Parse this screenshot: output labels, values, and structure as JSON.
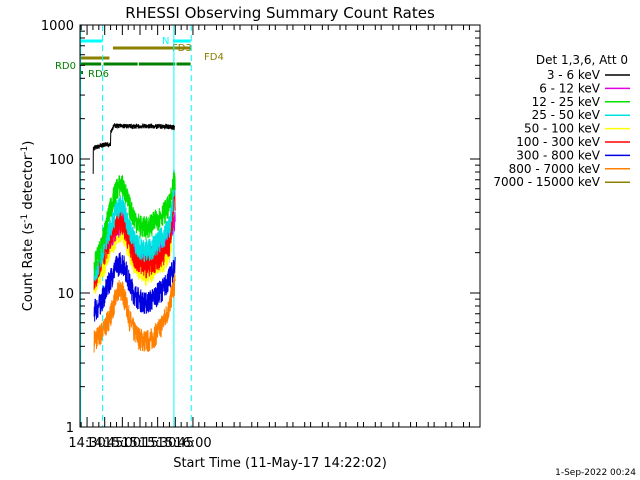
{
  "chart_data": {
    "type": "line",
    "title": "RHESSI Observing Summary Count Rates",
    "xlabel": "Start Time (11-May-17 14:22:02)",
    "ylabel_main": "Count Rate (s",
    "ylabel_sup1": "-1",
    "ylabel_mid": " detector",
    "ylabel_sup2": "-1",
    "ylabel_end": ")",
    "x_range_minutes": [
      864.0,
      1204.0
    ],
    "y_range": [
      1,
      1000
    ],
    "y_scale": "log",
    "x_ticks": [
      {
        "label": "14:30",
        "t": 870
      },
      {
        "label": "14:45",
        "t": 885
      },
      {
        "label": "15:00",
        "t": 900
      },
      {
        "label": "15:15",
        "t": 915
      },
      {
        "label": "15:30",
        "t": 930
      },
      {
        "label": "15:45",
        "t": 945
      },
      {
        "label": "16:00",
        "t": 960
      }
    ],
    "y_ticks": [
      {
        "label": "1",
        "v": 1
      },
      {
        "label": "10",
        "v": 10
      },
      {
        "label": "100",
        "v": 100
      },
      {
        "label": "1000",
        "v": 1000
      }
    ],
    "legend_header": "Det 1,3,6, Att 0",
    "series": [
      {
        "name": "3 - 6 keV",
        "color": "#000000",
        "points": [
          [
            875.2,
            75
          ],
          [
            875.3,
            120
          ],
          [
            880,
            125
          ],
          [
            885,
            128
          ],
          [
            890,
            130
          ],
          [
            890.1,
            160
          ],
          [
            893,
            178
          ],
          [
            900,
            176
          ],
          [
            910,
            175
          ],
          [
            920,
            176
          ],
          [
            930,
            175
          ],
          [
            940,
            175
          ],
          [
            944.5,
            170
          ]
        ]
      },
      {
        "name": "6 - 12 keV",
        "color": "#e000e0",
        "points": [
          [
            882,
            22
          ],
          [
            887,
            25
          ],
          [
            893,
            29
          ],
          [
            898,
            33
          ],
          [
            900,
            35
          ],
          [
            902,
            33
          ],
          [
            906,
            27
          ],
          [
            910,
            22
          ],
          [
            915,
            19
          ],
          [
            920,
            18
          ],
          [
            925,
            19
          ],
          [
            930,
            20
          ],
          [
            935,
            22
          ],
          [
            940,
            26
          ],
          [
            943,
            34
          ],
          [
            945,
            36
          ]
        ]
      },
      {
        "name": "12 - 25 keV",
        "color": "#00e000",
        "points": [
          [
            876,
            16
          ],
          [
            880,
            20
          ],
          [
            885,
            28
          ],
          [
            888,
            38
          ],
          [
            892,
            50
          ],
          [
            895,
            60
          ],
          [
            898,
            65
          ],
          [
            900,
            64
          ],
          [
            903,
            55
          ],
          [
            906,
            45
          ],
          [
            910,
            37
          ],
          [
            915,
            32
          ],
          [
            920,
            31
          ],
          [
            925,
            33
          ],
          [
            930,
            36
          ],
          [
            935,
            40
          ],
          [
            940,
            46
          ],
          [
            942,
            55
          ],
          [
            944,
            70
          ],
          [
            945,
            62
          ]
        ]
      },
      {
        "name": "25 - 50 keV",
        "color": "#00e0e0",
        "points": [
          [
            876,
            14
          ],
          [
            880,
            17
          ],
          [
            885,
            24
          ],
          [
            890,
            32
          ],
          [
            895,
            42
          ],
          [
            898,
            46
          ],
          [
            900,
            45
          ],
          [
            903,
            38
          ],
          [
            906,
            31
          ],
          [
            910,
            25
          ],
          [
            915,
            22
          ],
          [
            920,
            21
          ],
          [
            925,
            22
          ],
          [
            930,
            24
          ],
          [
            935,
            27
          ],
          [
            940,
            32
          ],
          [
            943,
            48
          ],
          [
            944,
            78
          ],
          [
            945,
            52
          ]
        ]
      },
      {
        "name": "50 - 100 keV",
        "color": "#ffff00",
        "points": [
          [
            876,
            12
          ],
          [
            880,
            13
          ],
          [
            885,
            17
          ],
          [
            890,
            22
          ],
          [
            895,
            28
          ],
          [
            898,
            30
          ],
          [
            900,
            29
          ],
          [
            903,
            25
          ],
          [
            906,
            21
          ],
          [
            910,
            17
          ],
          [
            915,
            15
          ],
          [
            920,
            14
          ],
          [
            925,
            15
          ],
          [
            930,
            16
          ],
          [
            935,
            17
          ],
          [
            940,
            20
          ],
          [
            943,
            35
          ],
          [
            944,
            85
          ],
          [
            945,
            40
          ]
        ]
      },
      {
        "name": "100 - 300 keV",
        "color": "#ff0000",
        "points": [
          [
            876,
            13
          ],
          [
            880,
            15
          ],
          [
            885,
            20
          ],
          [
            890,
            26
          ],
          [
            895,
            32
          ],
          [
            898,
            35
          ],
          [
            900,
            34
          ],
          [
            903,
            29
          ],
          [
            906,
            24
          ],
          [
            910,
            19
          ],
          [
            915,
            17
          ],
          [
            920,
            16
          ],
          [
            925,
            17
          ],
          [
            930,
            18
          ],
          [
            935,
            20
          ],
          [
            940,
            23
          ],
          [
            943,
            40
          ],
          [
            944,
            60
          ],
          [
            945,
            45
          ]
        ]
      },
      {
        "name": "300 - 800 keV",
        "color": "#0000e0",
        "points": [
          [
            876,
            7.5
          ],
          [
            880,
            8
          ],
          [
            885,
            10
          ],
          [
            890,
            13
          ],
          [
            895,
            16
          ],
          [
            898,
            17
          ],
          [
            900,
            17
          ],
          [
            903,
            15
          ],
          [
            906,
            12
          ],
          [
            910,
            10
          ],
          [
            915,
            9
          ],
          [
            920,
            8.5
          ],
          [
            925,
            9
          ],
          [
            930,
            10
          ],
          [
            935,
            11
          ],
          [
            940,
            13
          ],
          [
            943,
            15
          ],
          [
            945,
            17
          ]
        ]
      },
      {
        "name": "800 - 7000 keV",
        "color": "#ff8000",
        "points": [
          [
            876,
            4.5
          ],
          [
            880,
            4.8
          ],
          [
            885,
            5.5
          ],
          [
            890,
            7
          ],
          [
            895,
            9.5
          ],
          [
            898,
            11
          ],
          [
            900,
            10.5
          ],
          [
            903,
            8.5
          ],
          [
            906,
            6.5
          ],
          [
            910,
            5.2
          ],
          [
            915,
            4.6
          ],
          [
            920,
            4.4
          ],
          [
            925,
            4.6
          ],
          [
            930,
            5.2
          ],
          [
            935,
            6.2
          ],
          [
            940,
            8
          ],
          [
            943,
            11
          ],
          [
            945,
            12
          ]
        ]
      },
      {
        "name": "7000 - 15000 keV",
        "color": "#8b8000",
        "points": []
      }
    ],
    "attenuator_bands": [
      {
        "label": "N",
        "color": "#00ffff",
        "segments": [
          [
            864,
            883
          ],
          [
            943,
            958
          ]
        ]
      },
      {
        "label": "FD3",
        "color": "#8b8000",
        "segments": [
          [
            892,
            958
          ]
        ]
      },
      {
        "label": "FD4",
        "color": "#8b8000",
        "segments": [
          [
            864,
            889
          ]
        ]
      },
      {
        "label": "RD0",
        "color": "#007f00",
        "segments": [
          [
            864,
            882
          ],
          [
            884,
            913
          ],
          [
            914,
            945
          ],
          [
            946,
            958
          ]
        ]
      },
      {
        "label": "RD6",
        "color": "#007f00",
        "segments": []
      }
    ],
    "vertical_lines": [
      {
        "t": 864.5,
        "color": "#00ffff",
        "style": "solid"
      },
      {
        "t": 883.2,
        "color": "#00ffff",
        "style": "dashed"
      },
      {
        "t": 943.8,
        "color": "#00ffff",
        "style": "solid"
      },
      {
        "t": 958.6,
        "color": "#00ffff",
        "style": "dashed"
      }
    ],
    "legend_position": "top-right",
    "grid": false
  },
  "footer_date": "1-Sep-2022 00:24"
}
